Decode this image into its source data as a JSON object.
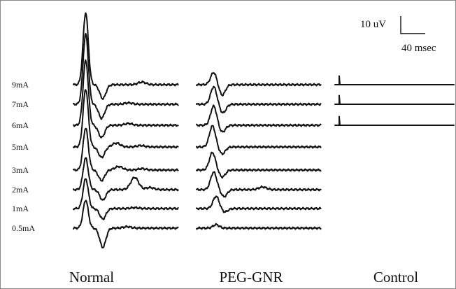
{
  "chart_data": {
    "type": "line",
    "title": "",
    "units": {
      "amplitude": "uV",
      "time": "msec"
    },
    "scale_bar": {
      "amplitude_label": "10 uV",
      "amplitude_value": 10,
      "time_label": "40 msec",
      "time_value": 40
    },
    "stimulus_levels": [
      "9mA",
      "7mA",
      "6mA",
      "5mA",
      "3mA",
      "2mA",
      "1mA",
      "0.5mA"
    ],
    "groups": [
      {
        "label": "Normal",
        "traces": [
          {
            "level": "9mA",
            "peaks": [
              [
                20,
                41
              ],
              [
                48,
                -8
              ],
              [
                112,
                1.5
              ]
            ]
          },
          {
            "level": "7mA",
            "peaks": [
              [
                20,
                40
              ],
              [
                46,
                -8
              ],
              [
                90,
                0.8
              ]
            ]
          },
          {
            "level": "6mA",
            "peaks": [
              [
                20,
                37
              ],
              [
                46,
                -7
              ],
              [
                90,
                1.0
              ]
            ]
          },
          {
            "level": "5mA",
            "peaks": [
              [
                20,
                33
              ],
              [
                46,
                -6
              ],
              [
                70,
                2.2
              ],
              [
                110,
                0.8
              ]
            ]
          },
          {
            "level": "3mA",
            "peaks": [
              [
                20,
                24
              ],
              [
                46,
                -6
              ],
              [
                74,
                2.0
              ],
              [
                112,
                0.8
              ]
            ]
          },
          {
            "level": "2mA",
            "peaks": [
              [
                20,
                18
              ],
              [
                48,
                -6
              ],
              [
                100,
                7.0
              ],
              [
                125,
                1.2
              ]
            ]
          },
          {
            "level": "1mA",
            "peaks": [
              [
                20,
                17
              ],
              [
                48,
                -6
              ],
              [
                100,
                0.5
              ]
            ]
          },
          {
            "level": "0.5mA",
            "peaks": [
              [
                20,
                16
              ],
              [
                48,
                -11
              ],
              [
                88,
                0.8
              ]
            ]
          }
        ]
      },
      {
        "label": "PEG-GNR",
        "traces": [
          {
            "level": "9mA",
            "peaks": [
              [
                28,
                7
              ],
              [
                42,
                -6
              ]
            ]
          },
          {
            "level": "7mA",
            "peaks": [
              [
                28,
                10
              ],
              [
                43,
                -5
              ]
            ]
          },
          {
            "level": "6mA",
            "peaks": [
              [
                28,
                11
              ],
              [
                42,
                -4
              ]
            ]
          },
          {
            "level": "5mA",
            "peaks": [
              [
                26,
                12
              ],
              [
                42,
                -4
              ]
            ]
          },
          {
            "level": "3mA",
            "peaks": [
              [
                26,
                10
              ],
              [
                42,
                -4
              ]
            ]
          },
          {
            "level": "2mA",
            "peaks": [
              [
                28,
                10
              ],
              [
                45,
                -4
              ],
              [
                108,
                1.5
              ]
            ]
          },
          {
            "level": "1mA",
            "peaks": [
              [
                32,
                7
              ],
              [
                46,
                -2
              ]
            ]
          },
          {
            "level": "0.5mA",
            "peaks": [
              [
                32,
                2
              ]
            ]
          }
        ]
      },
      {
        "label": "Control",
        "traces": [
          {
            "level": "9mA",
            "peaks": [
              [
                0,
                2
              ]
            ]
          },
          {
            "level": "7mA",
            "peaks": [
              [
                0,
                2
              ]
            ]
          },
          {
            "level": "6mA",
            "peaks": [
              [
                0,
                2
              ]
            ]
          }
        ]
      }
    ]
  }
}
